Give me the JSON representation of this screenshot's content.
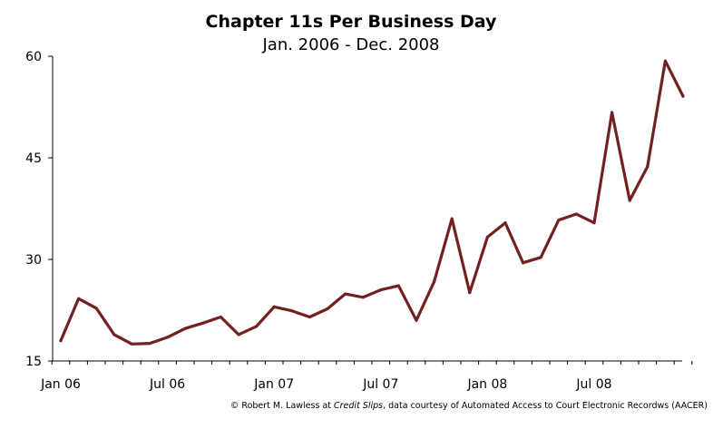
{
  "chart_data": {
    "type": "line",
    "title": "Chapter 11s Per Business Day",
    "subtitle": "Jan. 2006 - Dec. 2008",
    "xlabel": "",
    "ylabel": "",
    "ylim": [
      15,
      60
    ],
    "yticks": [
      15,
      30,
      45,
      60
    ],
    "xtick_labels": [
      "Jan 06",
      "Jul 06",
      "Jan 07",
      "Jul 07",
      "Jan 08",
      "Jul 08"
    ],
    "x": [
      "Jan 06",
      "Feb 06",
      "Mar 06",
      "Apr 06",
      "May 06",
      "Jun 06",
      "Jul 06",
      "Aug 06",
      "Sep 06",
      "Oct 06",
      "Nov 06",
      "Dec 06",
      "Jan 07",
      "Feb 07",
      "Mar 07",
      "Apr 07",
      "May 07",
      "Jun 07",
      "Jul 07",
      "Aug 07",
      "Sep 07",
      "Oct 07",
      "Nov 07",
      "Dec 07",
      "Jan 08",
      "Feb 08",
      "Mar 08",
      "Apr 08",
      "May 08",
      "Jun 08",
      "Jul 08",
      "Aug 08",
      "Sep 08",
      "Oct 08",
      "Nov 08",
      "Dec 08"
    ],
    "series": [
      {
        "values": [
          18.0,
          24.2,
          22.8,
          18.9,
          17.5,
          17.6,
          18.5,
          19.8,
          20.6,
          21.5,
          18.9,
          20.1,
          23.0,
          22.4,
          21.5,
          22.7,
          24.9,
          24.4,
          25.5,
          26.1,
          21.0,
          26.7,
          36.0,
          25.1,
          33.3,
          35.4,
          29.5,
          30.3,
          35.8,
          36.7,
          35.4,
          51.7,
          38.7,
          43.7,
          59.3,
          54.1
        ]
      }
    ],
    "line_color": "#722020",
    "grid": false,
    "legend": "none"
  },
  "credit": {
    "prefix": "© Robert M. Lawless at ",
    "italic": "Credit Slips",
    "suffix": ", data courtesy of Automated Access to Court Electronic Recordws (AACER)"
  }
}
